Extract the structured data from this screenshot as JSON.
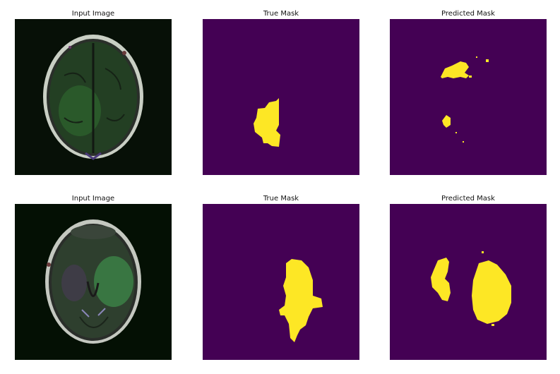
{
  "rows": [
    {
      "titles": [
        "Input Image",
        "True Mask",
        "Predicted Mask"
      ]
    },
    {
      "titles": [
        "Input Image",
        "True Mask",
        "Predicted Mask"
      ]
    }
  ],
  "colors": {
    "mask_background": "#440154",
    "mask_foreground": "#fde725",
    "mri_background": "#000000"
  }
}
